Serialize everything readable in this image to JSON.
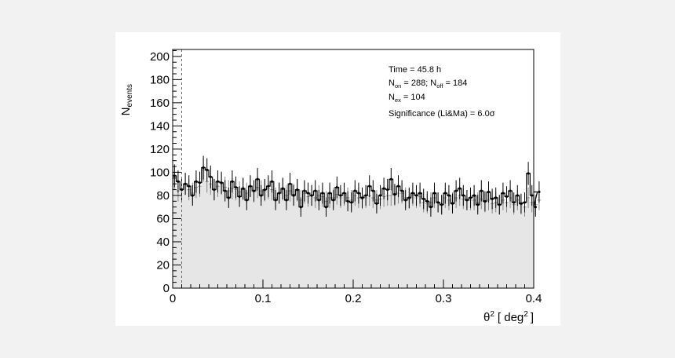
{
  "chart_data": {
    "type": "histogram",
    "xlabel": "θ2 [ deg2 ]",
    "xlabel_parts": {
      "theta": "θ",
      "exp": "2",
      "open": "[ deg",
      "close": "]"
    },
    "ylabel": "Nevents",
    "ylabel_parts": {
      "main": "N",
      "sub": "events"
    },
    "xlim": [
      0,
      0.4
    ],
    "ylim": [
      0,
      206
    ],
    "x_ticks": [
      "0",
      "0.1",
      "0.2",
      "0.3",
      "0.4"
    ],
    "y_ticks": [
      "0",
      "20",
      "40",
      "60",
      "80",
      "100",
      "120",
      "140",
      "160",
      "180",
      "200"
    ],
    "cut_value": 0.01,
    "annotations": {
      "time": "Time = 45.8 h",
      "non_label": "N",
      "non_sub": "on",
      "non_value": " = 288; N",
      "noff_sub": "off",
      "noff_value": " =  184",
      "nex_label": "N",
      "nex_sub": "ex",
      "nex_value": " = 104",
      "significance": "Significance (Li&Ma) =  6.0σ"
    },
    "bin_width": 0.004,
    "on_counts": [
      97,
      92,
      85,
      90,
      88,
      80,
      92,
      91,
      104,
      102,
      96,
      85,
      92,
      91,
      84,
      78,
      92,
      87,
      79,
      86,
      76,
      88,
      84,
      94,
      80,
      85,
      88,
      92,
      76,
      82,
      86,
      76,
      90,
      80,
      85,
      70,
      84,
      82,
      80,
      84,
      76,
      82,
      70,
      82,
      76,
      87,
      80,
      82,
      75,
      74,
      84,
      82,
      78,
      80,
      88,
      84,
      73,
      80,
      86,
      85,
      94,
      81,
      88,
      84,
      76,
      78,
      82,
      80,
      82,
      77,
      75,
      70,
      82,
      74,
      72,
      82,
      80,
      73,
      84,
      86,
      80,
      76,
      78,
      80,
      72,
      84,
      75,
      83,
      77,
      78,
      72,
      82,
      79,
      84,
      74,
      80,
      73,
      74,
      99,
      80,
      70,
      83
    ],
    "off_counts": [
      95,
      84,
      86,
      90,
      85,
      82,
      87,
      88,
      102,
      92,
      90,
      85,
      88,
      90,
      87,
      84,
      86,
      85,
      83,
      85,
      82,
      88,
      83,
      87,
      84,
      84,
      86,
      85,
      78,
      82,
      85,
      80,
      84,
      81,
      84,
      76,
      82,
      79,
      80,
      78,
      80,
      79,
      75,
      78,
      78,
      81,
      78,
      80,
      78,
      76,
      80,
      78,
      77,
      78,
      80,
      78,
      76,
      77,
      79,
      80,
      80,
      80,
      82,
      82,
      78,
      77,
      80,
      78,
      79,
      74,
      73,
      74,
      78,
      74,
      72,
      78,
      76,
      74,
      78,
      80,
      77,
      76,
      76,
      76,
      74,
      77,
      74,
      76,
      73,
      74,
      72,
      76,
      74,
      78,
      72,
      76,
      72,
      70,
      78,
      74,
      72,
      76
    ]
  }
}
